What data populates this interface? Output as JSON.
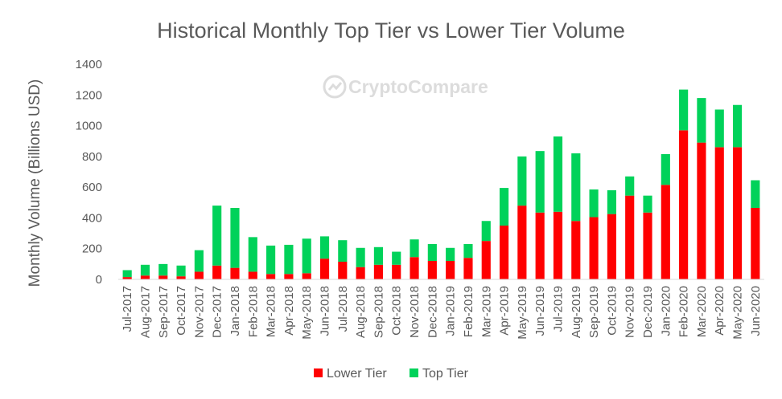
{
  "watermark": "CryptoCompare",
  "chart_data": {
    "type": "bar",
    "stacked": true,
    "title": "Historical Monthly Top Tier vs Lower Tier Volume",
    "xlabel": "",
    "ylabel": "Monthly Volume (Billions USD)",
    "ylim": [
      0,
      1400
    ],
    "yticks": [
      0,
      200,
      400,
      600,
      800,
      1000,
      1200,
      1400
    ],
    "grid": false,
    "legend_position": "bottom",
    "categories": [
      "Jul-2017",
      "Aug-2017",
      "Sep-2017",
      "Oct-2017",
      "Nov-2017",
      "Dec-2017",
      "Jan-2018",
      "Feb-2018",
      "Mar-2018",
      "Apr-2018",
      "May-2018",
      "Jun-2018",
      "Jul-2018",
      "Aug-2018",
      "Sep-2018",
      "Oct-2018",
      "Nov-2018",
      "Dec-2018",
      "Jan-2019",
      "Feb-2019",
      "Mar-2019",
      "Apr-2019",
      "May-2019",
      "Jun-2019",
      "Jul-2019",
      "Aug-2019",
      "Sep-2019",
      "Oct-2019",
      "Nov-2019",
      "Dec-2019",
      "Jan-2020",
      "Feb-2020",
      "Mar-2020",
      "Apr-2020",
      "May-2020",
      "Jun-2020"
    ],
    "series": [
      {
        "name": "Lower Tier",
        "color": "#ff0000",
        "values": [
          15,
          25,
          25,
          20,
          50,
          90,
          75,
          50,
          35,
          35,
          40,
          135,
          115,
          80,
          95,
          95,
          145,
          120,
          120,
          140,
          250,
          350,
          480,
          435,
          440,
          380,
          405,
          425,
          545,
          435,
          615,
          970,
          890,
          860,
          860,
          465
        ]
      },
      {
        "name": "Top Tier",
        "color": "#00d25a",
        "values": [
          45,
          70,
          75,
          70,
          140,
          390,
          390,
          225,
          185,
          190,
          225,
          145,
          140,
          125,
          115,
          85,
          115,
          110,
          85,
          90,
          130,
          245,
          320,
          400,
          490,
          440,
          180,
          155,
          125,
          110,
          200,
          265,
          290,
          245,
          275,
          180
        ]
      }
    ]
  }
}
